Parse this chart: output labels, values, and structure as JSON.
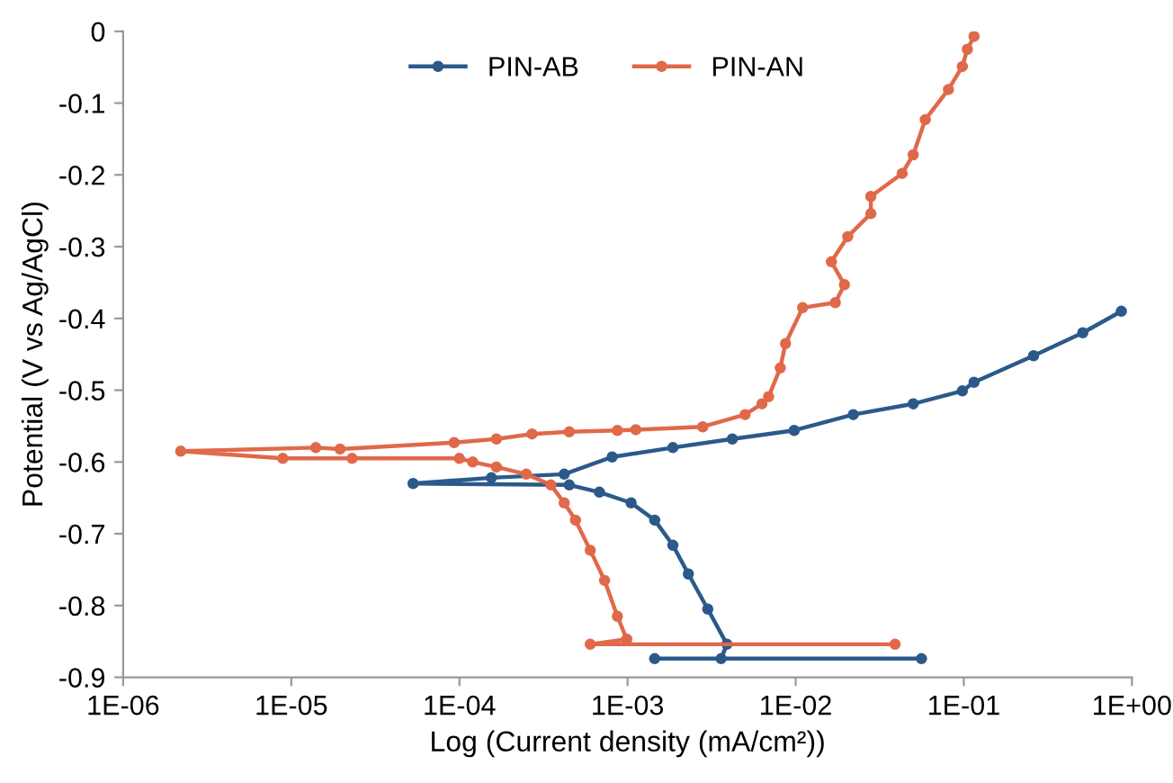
{
  "chart_data": {
    "type": "line",
    "xlabel": "Log (Current density (mA/cm²))",
    "ylabel": "Potential (V vs Ag/AgCl)",
    "log": "x",
    "xlim": [
      1e-06,
      1
    ],
    "xticks": [
      {
        "value": 1e-06,
        "label": "1E-06"
      },
      {
        "value": 1e-05,
        "label": "1E-05"
      },
      {
        "value": 0.0001,
        "label": "1E-04"
      },
      {
        "value": 0.001,
        "label": "1E-03"
      },
      {
        "value": 0.01,
        "label": "1E-02"
      },
      {
        "value": 0.1,
        "label": "1E-01"
      },
      {
        "value": 1,
        "label": "1E+00"
      }
    ],
    "ylim": [
      -0.9,
      0
    ],
    "yticks": [
      -0.9,
      -0.8,
      -0.7,
      -0.6,
      -0.5,
      -0.4,
      -0.3,
      -0.2,
      -0.1,
      0
    ],
    "grid": false,
    "legend": "top",
    "marker": "circle",
    "line_style": "solid",
    "series": [
      {
        "name": "PIN-AB",
        "color": "#2b5a8a",
        "x": [
          0.056,
          0.00145,
          0.0036,
          0.0039,
          0.003,
          0.0023,
          0.00186,
          0.00145,
          0.00105,
          0.00068,
          0.00045,
          5.3e-05,
          0.000155,
          0.00042,
          0.00081,
          0.00186,
          0.0042,
          0.0098,
          0.022,
          0.05,
          0.098,
          0.115,
          0.26,
          0.51,
          0.865
        ],
        "values": [
          -0.874,
          -0.874,
          -0.874,
          -0.854,
          -0.805,
          -0.756,
          -0.716,
          -0.681,
          -0.657,
          -0.642,
          -0.632,
          -0.63,
          -0.622,
          -0.617,
          -0.593,
          -0.58,
          -0.568,
          -0.556,
          -0.534,
          -0.519,
          -0.501,
          -0.489,
          -0.452,
          -0.42,
          -0.39
        ]
      },
      {
        "name": "PIN-AN",
        "color": "#e0694a",
        "x": [
          0.039,
          0.0006,
          0.00099,
          0.00087,
          0.00073,
          0.0006,
          0.00049,
          0.00042,
          0.00035,
          0.00025,
          0.000166,
          0.00012,
          0.0001,
          2.3e-05,
          8.9e-06,
          2.2e-06,
          1.4e-05,
          1.95e-05,
          9.3e-05,
          0.000166,
          0.00027,
          0.00045,
          0.00087,
          0.00112,
          0.0028,
          0.005,
          0.0063,
          0.0069,
          0.0081,
          0.0087,
          0.011,
          0.0172,
          0.0195,
          0.0163,
          0.0204,
          0.028,
          0.028,
          0.043,
          0.05,
          0.059,
          0.081,
          0.098,
          0.105,
          0.115
        ],
        "values": [
          -0.854,
          -0.854,
          -0.847,
          -0.815,
          -0.765,
          -0.723,
          -0.681,
          -0.657,
          -0.632,
          -0.617,
          -0.607,
          -0.6,
          -0.595,
          -0.595,
          -0.595,
          -0.585,
          -0.58,
          -0.582,
          -0.573,
          -0.568,
          -0.561,
          -0.558,
          -0.556,
          -0.555,
          -0.551,
          -0.534,
          -0.519,
          -0.509,
          -0.469,
          -0.435,
          -0.385,
          -0.378,
          -0.353,
          -0.321,
          -0.286,
          -0.254,
          -0.23,
          -0.198,
          -0.172,
          -0.123,
          -0.081,
          -0.049,
          -0.025,
          -0.007
        ]
      }
    ]
  }
}
